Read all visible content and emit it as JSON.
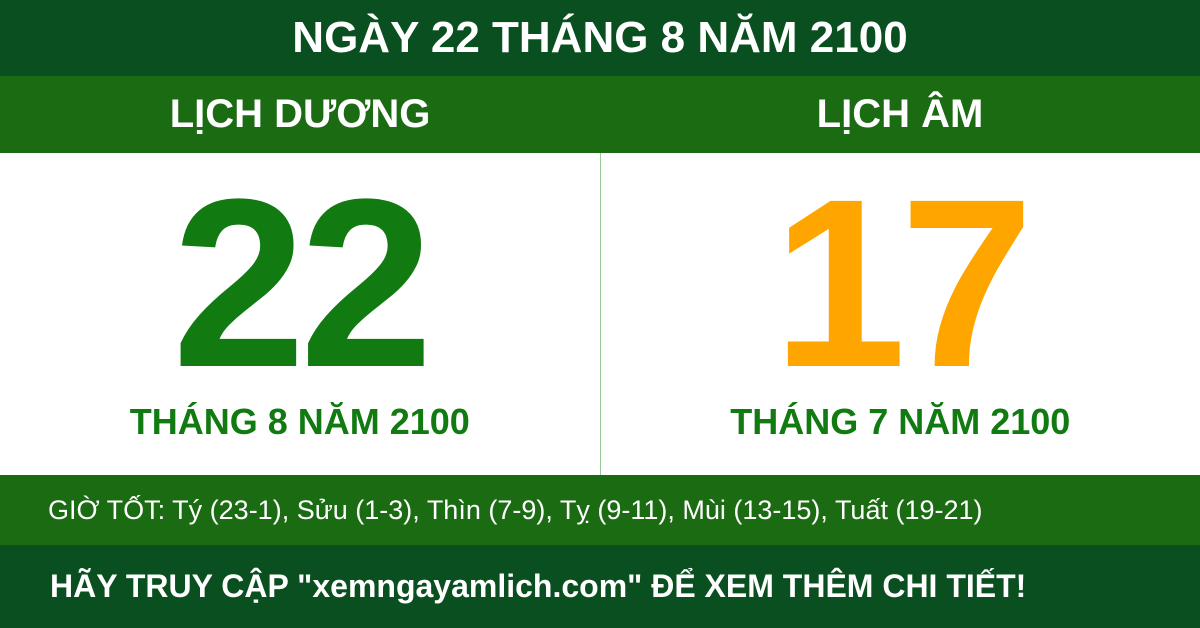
{
  "header": {
    "title": "NGÀY 22 THÁNG 8 NĂM 2100"
  },
  "solar": {
    "label": "LỊCH DƯƠNG",
    "day": "22",
    "month_year": "THÁNG 8 NĂM 2100"
  },
  "lunar": {
    "label": "LỊCH ÂM",
    "day": "17",
    "month_year": "THÁNG 7 NĂM 2100"
  },
  "good_hours": "GIỜ TỐT: Tý (23-1), Sửu (1-3), Thìn (7-9), Tỵ (9-11), Mùi (13-15), Tuất (19-21)",
  "footer": "HÃY TRUY CẬP \"xemngayamlich.com\" ĐỂ XEM THÊM CHI TIẾT!"
}
